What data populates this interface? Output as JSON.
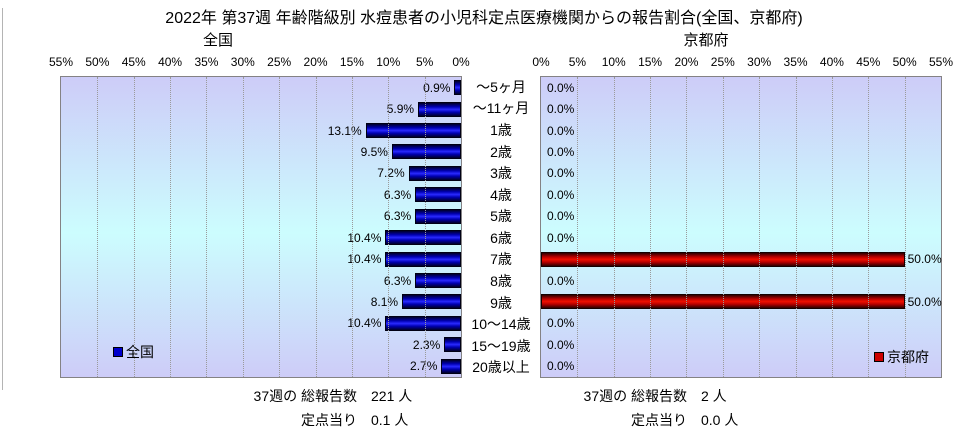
{
  "chart_data": {
    "type": "bar",
    "orientation": "horizontal",
    "title": "2022年 第37週 年齢階級別 水痘患者の小児科定点医療機関からの報告割合(全国、京都府)",
    "categories": [
      "～5ヶ月",
      "～11ヶ月",
      "1歳",
      "2歳",
      "3歳",
      "4歳",
      "5歳",
      "6歳",
      "7歳",
      "8歳",
      "9歳",
      "10～14歳",
      "15～19歳",
      "20歳以上"
    ],
    "xlim": [
      0,
      55
    ],
    "tick_step": 5,
    "x_ticks": [
      "0%",
      "5%",
      "10%",
      "15%",
      "20%",
      "25%",
      "30%",
      "35%",
      "40%",
      "45%",
      "50%",
      "55%"
    ],
    "grid": true,
    "grid_color": "#9a9a9a",
    "plot_border_color": "#848284",
    "plot_background": [
      "#cdccf8",
      "#ccfdfe",
      "#cdccf8"
    ],
    "legend_position": "inside-bottom",
    "series": [
      {
        "name": "全国",
        "side": "left",
        "axis_direction": "right-to-left (0% at right)",
        "color": "#0000cc",
        "values": [
          0.9,
          5.9,
          13.1,
          9.5,
          7.2,
          6.3,
          6.3,
          10.4,
          10.4,
          6.3,
          8.1,
          10.4,
          2.3,
          2.7
        ],
        "value_labels": [
          "0.9%",
          "5.9%",
          "13.1%",
          "9.5%",
          "7.2%",
          "6.3%",
          "6.3%",
          "10.4%",
          "10.4%",
          "6.3%",
          "8.1%",
          "10.4%",
          "2.3%",
          "2.7%"
        ],
        "summary": {
          "total_label": "37週の 総報告数",
          "total_value": "221 人",
          "per_label": "定点当り",
          "per_value": "0.1 人"
        }
      },
      {
        "name": "京都府",
        "side": "right",
        "axis_direction": "left-to-right (0% at left)",
        "color": "#cc0000",
        "values": [
          0.0,
          0.0,
          0.0,
          0.0,
          0.0,
          0.0,
          0.0,
          0.0,
          50.0,
          0.0,
          50.0,
          0.0,
          0.0,
          0.0
        ],
        "value_labels": [
          "0.0%",
          "0.0%",
          "0.0%",
          "0.0%",
          "0.0%",
          "0.0%",
          "0.0%",
          "0.0%",
          "50.0%",
          "0.0%",
          "50.0%",
          "0.0%",
          "0.0%",
          "0.0%"
        ],
        "summary": {
          "total_label": "37週の 総報告数",
          "total_value": "2 人",
          "per_label": "定点当り",
          "per_value": "0.0 人"
        }
      }
    ]
  }
}
